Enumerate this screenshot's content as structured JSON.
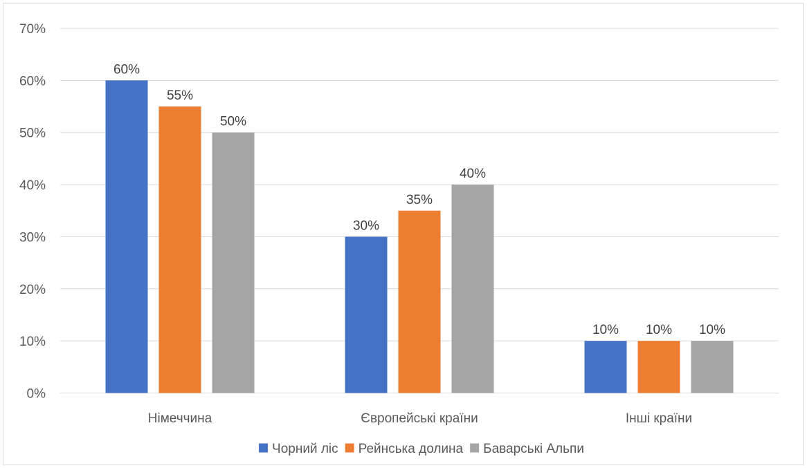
{
  "chart_data": {
    "type": "bar",
    "title": "",
    "xlabel": "",
    "ylabel": "",
    "categories": [
      "Німеччина",
      "Європейські країни",
      "Інші країни"
    ],
    "series": [
      {
        "name": "Чорний ліс",
        "values": [
          60,
          30,
          10
        ],
        "labels": [
          "60%",
          "30%",
          "10%"
        ],
        "color": "#4472c4"
      },
      {
        "name": "Рейнська долина",
        "values": [
          55,
          35,
          10
        ],
        "labels": [
          "55%",
          "35%",
          "10%"
        ],
        "color": "#ed7d31"
      },
      {
        "name": "Баварські Альпи",
        "values": [
          50,
          40,
          10
        ],
        "labels": [
          "50%",
          "40%",
          "10%"
        ],
        "color": "#a5a5a5"
      }
    ],
    "ylim": [
      0,
      70
    ],
    "yticks": [
      0,
      10,
      20,
      30,
      40,
      50,
      60,
      70
    ],
    "ytick_labels": [
      "0%",
      "10%",
      "20%",
      "30%",
      "40%",
      "50%",
      "60%",
      "70%"
    ],
    "grid": true,
    "legend": "bottom",
    "gridline_color": "#d9d9d9"
  }
}
